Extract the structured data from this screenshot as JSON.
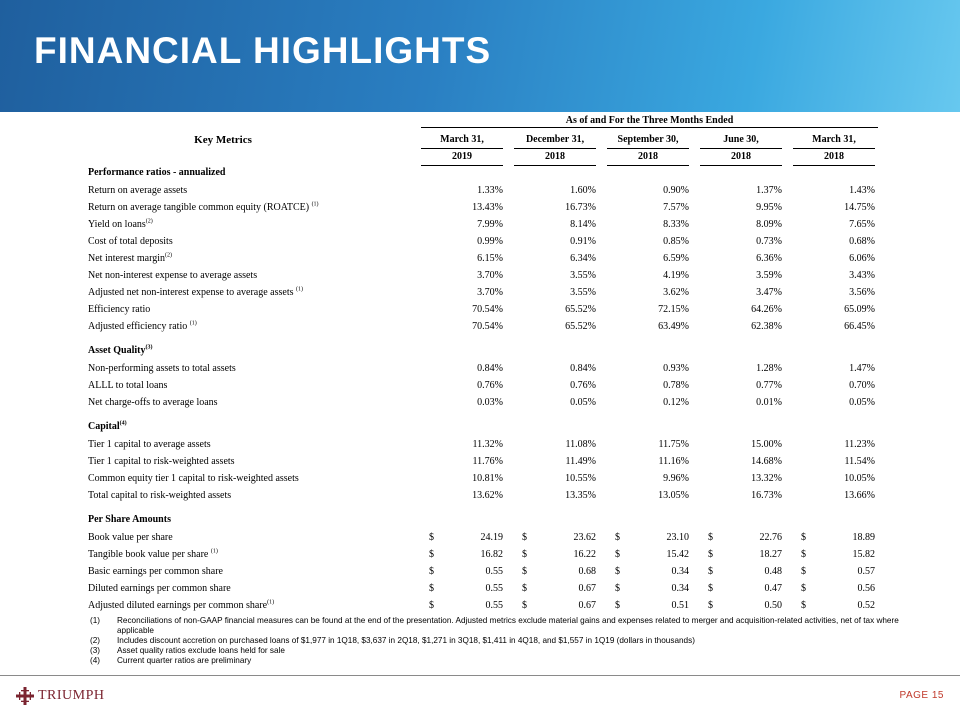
{
  "title": "FINANCIAL HIGHLIGHTS",
  "table": {
    "group_header": "As of and For the Three Months Ended",
    "key_header": "Key Metrics",
    "columns": [
      {
        "month": "March 31,",
        "year": "2019"
      },
      {
        "month": "December 31,",
        "year": "2018"
      },
      {
        "month": "September 30,",
        "year": "2018"
      },
      {
        "month": "June 30,",
        "year": "2018"
      },
      {
        "month": "March 31,",
        "year": "2018"
      }
    ],
    "sections": [
      {
        "title": "Performance ratios - annualized",
        "title_sup": "",
        "rows": [
          {
            "label": "Return on average assets",
            "sup": "",
            "values": [
              "1.33%",
              "1.60%",
              "0.90%",
              "1.37%",
              "1.43%"
            ]
          },
          {
            "label": "Return on average tangible common equity (ROATCE) ",
            "sup": "(1)",
            "values": [
              "13.43%",
              "16.73%",
              "7.57%",
              "9.95%",
              "14.75%"
            ]
          },
          {
            "label": "Yield on loans",
            "sup": "(2)",
            "values": [
              "7.99%",
              "8.14%",
              "8.33%",
              "8.09%",
              "7.65%"
            ]
          },
          {
            "label": "Cost of total deposits",
            "sup": "",
            "values": [
              "0.99%",
              "0.91%",
              "0.85%",
              "0.73%",
              "0.68%"
            ]
          },
          {
            "label": "Net interest margin",
            "sup": "(2)",
            "values": [
              "6.15%",
              "6.34%",
              "6.59%",
              "6.36%",
              "6.06%"
            ]
          },
          {
            "label": "Net non-interest expense to average assets",
            "sup": "",
            "values": [
              "3.70%",
              "3.55%",
              "4.19%",
              "3.59%",
              "3.43%"
            ]
          },
          {
            "label": "Adjusted net non-interest expense to average assets ",
            "sup": "(1)",
            "values": [
              "3.70%",
              "3.55%",
              "3.62%",
              "3.47%",
              "3.56%"
            ]
          },
          {
            "label": "Efficiency ratio",
            "sup": "",
            "values": [
              "70.54%",
              "65.52%",
              "72.15%",
              "64.26%",
              "65.09%"
            ]
          },
          {
            "label": "Adjusted efficiency ratio ",
            "sup": "(1)",
            "values": [
              "70.54%",
              "65.52%",
              "63.49%",
              "62.38%",
              "66.45%"
            ]
          }
        ]
      },
      {
        "title": "Asset Quality",
        "title_sup": "(3)",
        "rows": [
          {
            "label": "Non-performing assets to total assets",
            "sup": "",
            "values": [
              "0.84%",
              "0.84%",
              "0.93%",
              "1.28%",
              "1.47%"
            ]
          },
          {
            "label": "ALLL to total loans",
            "sup": "",
            "values": [
              "0.76%",
              "0.76%",
              "0.78%",
              "0.77%",
              "0.70%"
            ]
          },
          {
            "label": "Net charge-offs to average loans",
            "sup": "",
            "values": [
              "0.03%",
              "0.05%",
              "0.12%",
              "0.01%",
              "0.05%"
            ]
          }
        ]
      },
      {
        "title": "Capital",
        "title_sup": "(4)",
        "rows": [
          {
            "label": "Tier 1 capital to average assets",
            "sup": "",
            "values": [
              "11.32%",
              "11.08%",
              "11.75%",
              "15.00%",
              "11.23%"
            ]
          },
          {
            "label": "Tier 1 capital to risk-weighted assets",
            "sup": "",
            "values": [
              "11.76%",
              "11.49%",
              "11.16%",
              "14.68%",
              "11.54%"
            ]
          },
          {
            "label": "Common equity tier 1 capital to risk-weighted assets",
            "sup": "",
            "values": [
              "10.81%",
              "10.55%",
              "9.96%",
              "13.32%",
              "10.05%"
            ]
          },
          {
            "label": "Total capital to risk-weighted assets",
            "sup": "",
            "values": [
              "13.62%",
              "13.35%",
              "13.05%",
              "16.73%",
              "13.66%"
            ]
          }
        ]
      },
      {
        "title": "Per Share Amounts",
        "title_sup": "",
        "rows": [
          {
            "label": "Book value per share",
            "sup": "",
            "currency": "$",
            "values": [
              "24.19",
              "23.62",
              "23.10",
              "22.76",
              "18.89"
            ]
          },
          {
            "label": "Tangible book value per share ",
            "sup": "(1)",
            "currency": "$",
            "values": [
              "16.82",
              "16.22",
              "15.42",
              "18.27",
              "15.82"
            ]
          },
          {
            "label": "Basic earnings per common share",
            "sup": "",
            "currency": "$",
            "values": [
              "0.55",
              "0.68",
              "0.34",
              "0.48",
              "0.57"
            ]
          },
          {
            "label": "Diluted earnings per common share",
            "sup": "",
            "currency": "$",
            "values": [
              "0.55",
              "0.67",
              "0.34",
              "0.47",
              "0.56"
            ]
          },
          {
            "label": "Adjusted diluted earnings per common share",
            "sup": "(1)",
            "currency": "$",
            "values": [
              "0.55",
              "0.67",
              "0.51",
              "0.50",
              "0.52"
            ]
          }
        ]
      }
    ]
  },
  "footnotes": [
    {
      "num": "(1)",
      "text": "Reconciliations of non-GAAP financial measures can be found at the end of the presentation. Adjusted metrics exclude material gains and expenses related to merger and acquisition-related activities, net of tax where applicable"
    },
    {
      "num": "(2)",
      "text": "Includes discount accretion on purchased loans of $1,977 in 1Q18, $3,637 in 2Q18, $1,271 in 3Q18, $1,411 in 4Q18, and $1,557 in 1Q19 (dollars in thousands)"
    },
    {
      "num": "(3)",
      "text": "Asset quality ratios exclude loans held for sale"
    },
    {
      "num": "(4)",
      "text": "Current quarter ratios are preliminary"
    }
  ],
  "footer": {
    "logo_text": "TRIUMPH",
    "page_label": "PAGE 15"
  },
  "colors": {
    "banner_start": "#1f5f9e",
    "banner_end": "#67c8ef",
    "logo": "#7b2430",
    "page_number": "#c0392b"
  }
}
